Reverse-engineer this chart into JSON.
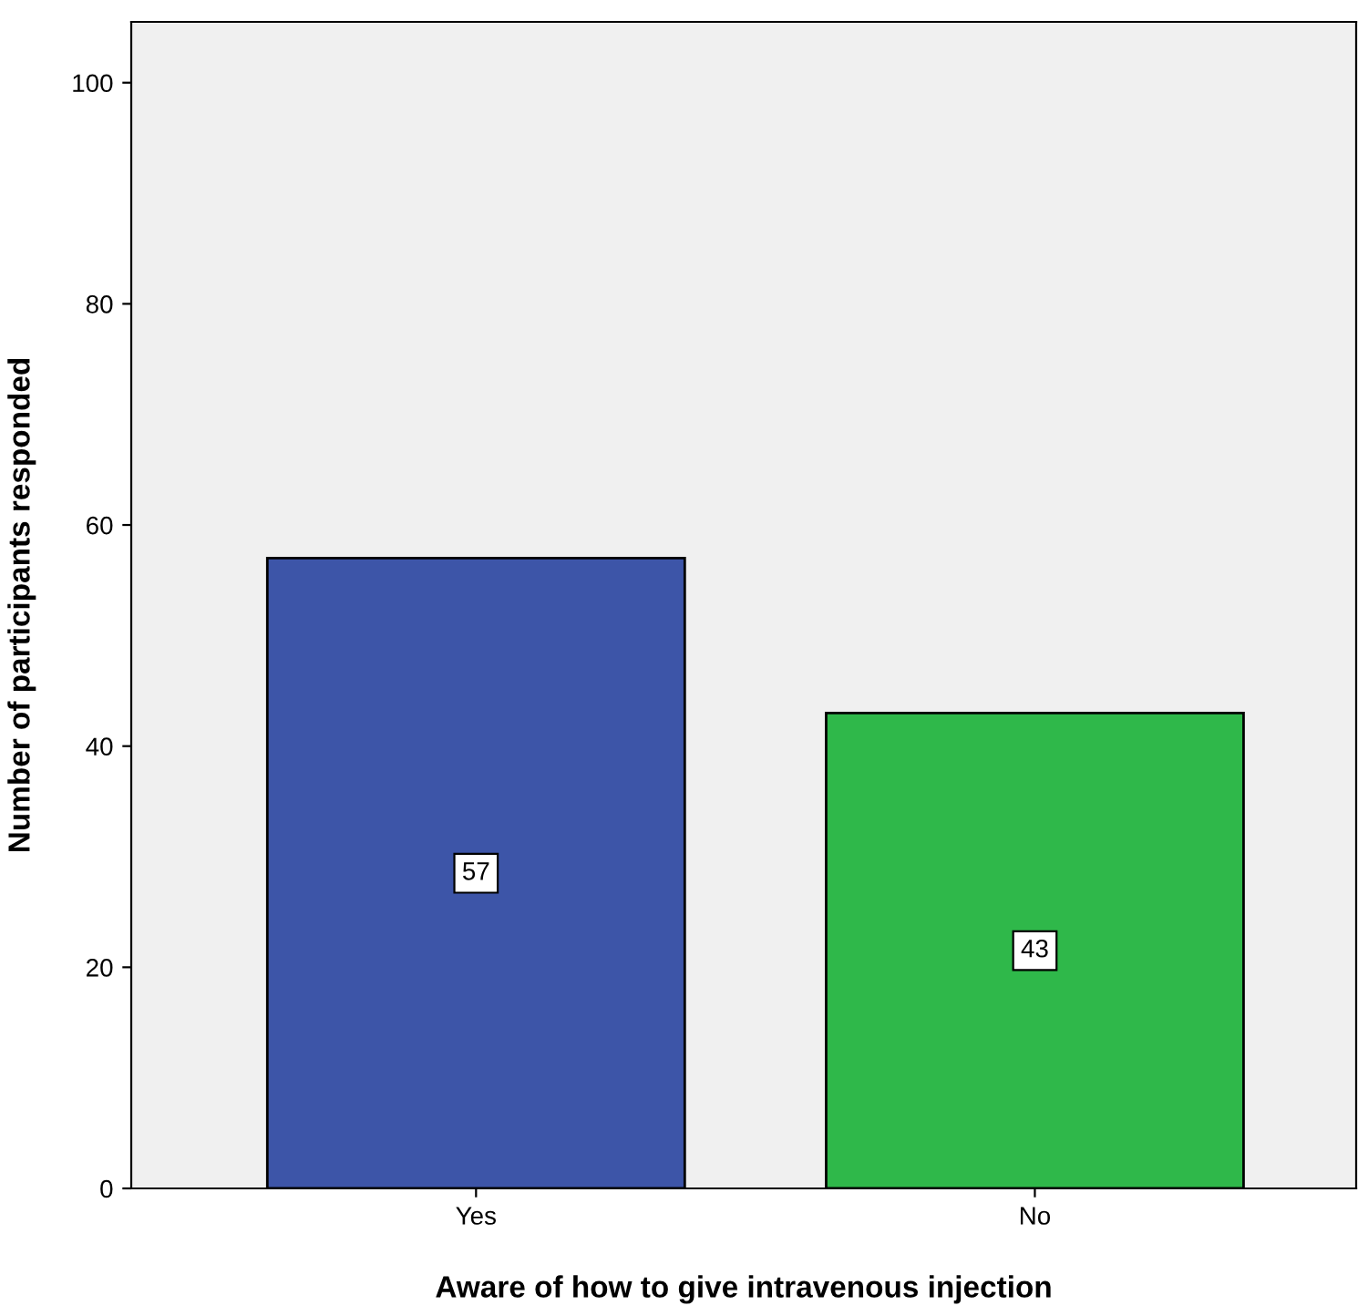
{
  "chart_data": {
    "type": "bar",
    "xlabel": "Aware of how to give intravenous injection",
    "ylabel": "Number of participants responded",
    "categories": [
      "Yes",
      "No"
    ],
    "values": [
      57,
      43
    ],
    "colors": [
      "#3d55a8",
      "#2fb84a"
    ],
    "ylim": [
      0,
      105.5
    ],
    "yticks": [
      0,
      20,
      40,
      60,
      80,
      100
    ],
    "grid": false,
    "legend": false,
    "data_labels": true
  }
}
